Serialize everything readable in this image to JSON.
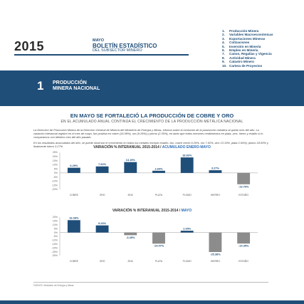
{
  "header": {
    "year": "2015",
    "month": "MAYO",
    "title": "BOLETÍN ESTADÍSTICO",
    "subtitle": "DEL SUBSECTOR MINERO"
  },
  "toc": [
    {
      "num": "1.",
      "label": "Producción Minera"
    },
    {
      "num": "2.",
      "label": "Variables Macroeconómicas"
    },
    {
      "num": "3.",
      "label": "Exportaciones Mineras"
    },
    {
      "num": "4.",
      "label": "Cotizaciones"
    },
    {
      "num": "5.",
      "label": "Inversión en Minería"
    },
    {
      "num": "6.",
      "label": "Empleo en Minería"
    },
    {
      "num": "7.",
      "label": "Canon, Regalías y Vigencia"
    },
    {
      "num": "8.",
      "label": "Actividad Minera"
    },
    {
      "num": "9.",
      "label": "Catastro Minero"
    },
    {
      "num": "10.",
      "label": "Cartera de Proyectos"
    }
  ],
  "section": {
    "number": "1",
    "title_line1": "PRODUCCIÓN",
    "title_line2": "MINERA NACIONAL"
  },
  "headline": "EN MAYO SE FORTALECIÓ LA PRODUCCIÓN DE COBRE Y ORO",
  "subheadline": "EN EL ACUMULADO ANUAL CONTINÚA EL CRECIMIENTO DE LA PRODUCCIÓN METÁLICA NACIONAL",
  "body": {
    "p1": "La Dirección de Promoción Minera de la Dirección General de Minería del Ministerio de Energía y Minas, informa sobre la evolución de la producción metálica al quinto mes del año. La variación interanual registró en el mes de mayo, fue positiva en cobre (16.08%), oro (9.26%) y plomo (2.35%), en tanto que todos menores rendimientos en plata, zinc, hierro y estaño si lo comparamos con idéntico mes del año pasado.",
    "p2": "En los resultados acumulados del año, se puede observar el crecimiento en todos los metales excepto estaño. Así, cobre creció 6.29%, oro 7.92%, zinc 13.19%, plata 2.64%), plomo 18.83% y finalmente hierro 3.27%."
  },
  "footnote": "FUENTE: Ministerio de Energía y Minas",
  "colors": {
    "brand": "#1f4e79",
    "bar": "#1f4e79",
    "bar_negative": "#8c8c8c",
    "accent": "#2f6fb7"
  },
  "chart_data": [
    {
      "type": "bar",
      "title": "VARIACIÓN % INTERANUAL 2015-2014 /",
      "title_accent": "ACUMULADO ENERO-MAYO",
      "categories": [
        "COBRE",
        "ORO",
        "ZINC",
        "PLATA",
        "PLOMO",
        "HIERRO",
        "ESTAÑO"
      ],
      "values": [
        6.29,
        7.92,
        13.19,
        2.64,
        18.83,
        3.27,
        -13.76
      ],
      "value_labels": [
        "6.29%",
        "7.92%",
        "13.19%",
        "2.64%",
        "18.83%",
        "3.27%",
        "-13.76%"
      ],
      "yticks": [
        "25%",
        "20%",
        "15%",
        "10%",
        "5%",
        "0%",
        "-5%",
        "-10%",
        "-15%",
        "-20%"
      ],
      "ylim": [
        -20,
        25
      ],
      "grid": false,
      "legend": "none"
    },
    {
      "type": "bar",
      "title": "VARIACIÓN % INTERANUAL 2015-2014 /",
      "title_accent": "MAYO",
      "categories": [
        "COBRE",
        "ORO",
        "ZINC",
        "PLATA",
        "PLOMO",
        "HIERRO",
        "ESTAÑO"
      ],
      "values": [
        16.08,
        9.26,
        -3.45,
        -14.47,
        2.35,
        -25.38,
        -14.35
      ],
      "value_labels": [
        "16.08%",
        "9.26%",
        "-3.45%",
        "-14.47%",
        "2.35%",
        "-25.38%",
        "-14.35%"
      ],
      "yticks": [
        "20%",
        "15%",
        "10%",
        "5%",
        "0%",
        "-5%",
        "-10%",
        "-15%",
        "-20%",
        "-25%",
        "-30%"
      ],
      "ylim": [
        -30,
        20
      ],
      "grid": false,
      "legend": "none"
    }
  ]
}
